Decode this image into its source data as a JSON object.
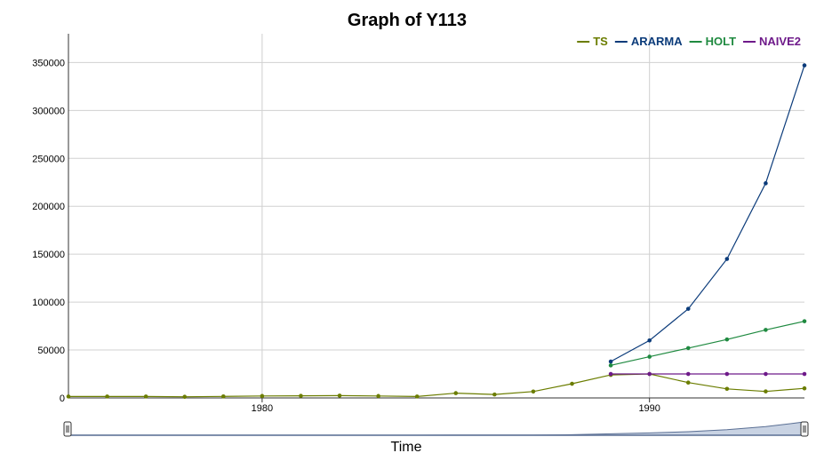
{
  "chart_data": {
    "type": "line",
    "title": "Graph of Y113",
    "xlabel": "Time",
    "ylabel": "",
    "xlim": [
      1975,
      1994
    ],
    "ylim": [
      0,
      380000
    ],
    "xticks": [
      1980,
      1990
    ],
    "yticks": [
      0,
      50000,
      100000,
      150000,
      200000,
      250000,
      300000,
      350000
    ],
    "grid": true,
    "legend_position": "top-right",
    "range_selector": true,
    "series": [
      {
        "name": "TS",
        "color": "#6b7d00",
        "x": [
          1975,
          1976,
          1977,
          1978,
          1979,
          1980,
          1981,
          1982,
          1983,
          1984,
          1985,
          1986,
          1987,
          1988,
          1989,
          1990,
          1991,
          1992,
          1993,
          1994
        ],
        "y": [
          1500,
          1500,
          1500,
          1200,
          1600,
          2000,
          2200,
          2400,
          2000,
          1500,
          5000,
          3600,
          6700,
          14800,
          24000,
          25000,
          16000,
          9500,
          6800,
          10000
        ]
      },
      {
        "name": "ARARMA",
        "color": "#0b3b7a",
        "x": [
          1989,
          1990,
          1991,
          1992,
          1993,
          1994
        ],
        "y": [
          38000,
          60000,
          93000,
          145000,
          224000,
          347000
        ]
      },
      {
        "name": "HOLT",
        "color": "#1f8a40",
        "x": [
          1989,
          1990,
          1991,
          1992,
          1993,
          1994
        ],
        "y": [
          34000,
          43000,
          52000,
          61000,
          71000,
          80000
        ]
      },
      {
        "name": "NAIVE2",
        "color": "#6e1a8a",
        "x": [
          1989,
          1990,
          1991,
          1992,
          1993,
          1994
        ],
        "y": [
          25000,
          25000,
          25000,
          25000,
          25000,
          25000
        ]
      }
    ]
  }
}
